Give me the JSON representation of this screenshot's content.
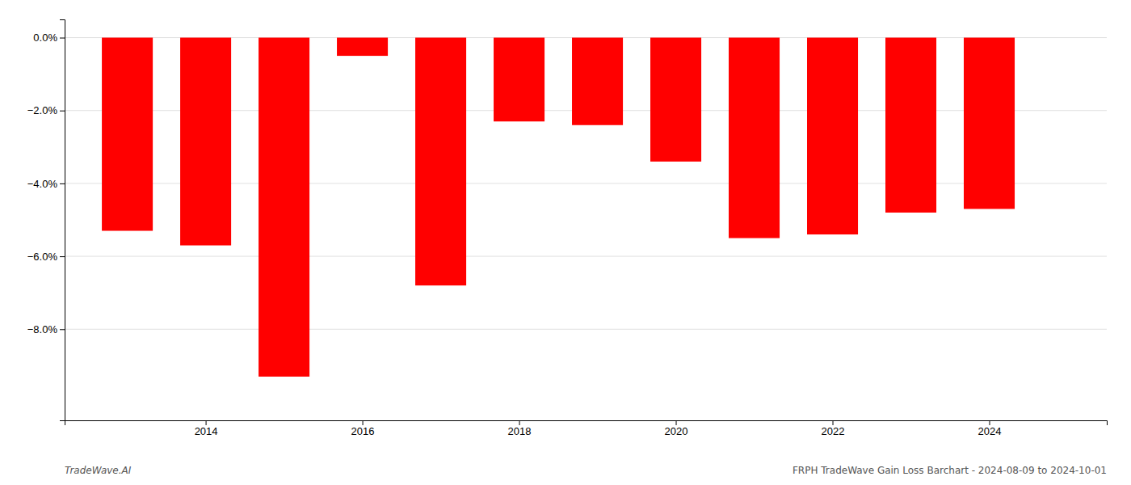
{
  "chart_data": {
    "type": "bar",
    "x": [
      2013,
      2014,
      2015,
      2016,
      2017,
      2018,
      2019,
      2020,
      2021,
      2022,
      2023,
      2024
    ],
    "values": [
      -5.3,
      -5.7,
      -9.3,
      -0.5,
      -6.8,
      -2.3,
      -2.4,
      -3.4,
      -5.5,
      -5.4,
      -4.8,
      -4.7
    ],
    "color": "#ff0000",
    "xlim": [
      2012.2,
      2025.5
    ],
    "xticks": [
      2014,
      2016,
      2018,
      2020,
      2022,
      2024
    ],
    "ylim": [
      -10.5,
      0.5
    ],
    "yticks": [
      {
        "value": 0.0,
        "label": "0.0%"
      },
      {
        "value": -2.0,
        "label": "−2.0%"
      },
      {
        "value": -4.0,
        "label": "−4.0%"
      },
      {
        "value": -6.0,
        "label": "−6.0%"
      },
      {
        "value": -8.0,
        "label": "−8.0%"
      }
    ],
    "grid": "y",
    "annotations": [
      "TradeWave.AI",
      "FRPH TradeWave Gain Loss Barchart - 2024-08-09 to 2024-10-01"
    ]
  }
}
